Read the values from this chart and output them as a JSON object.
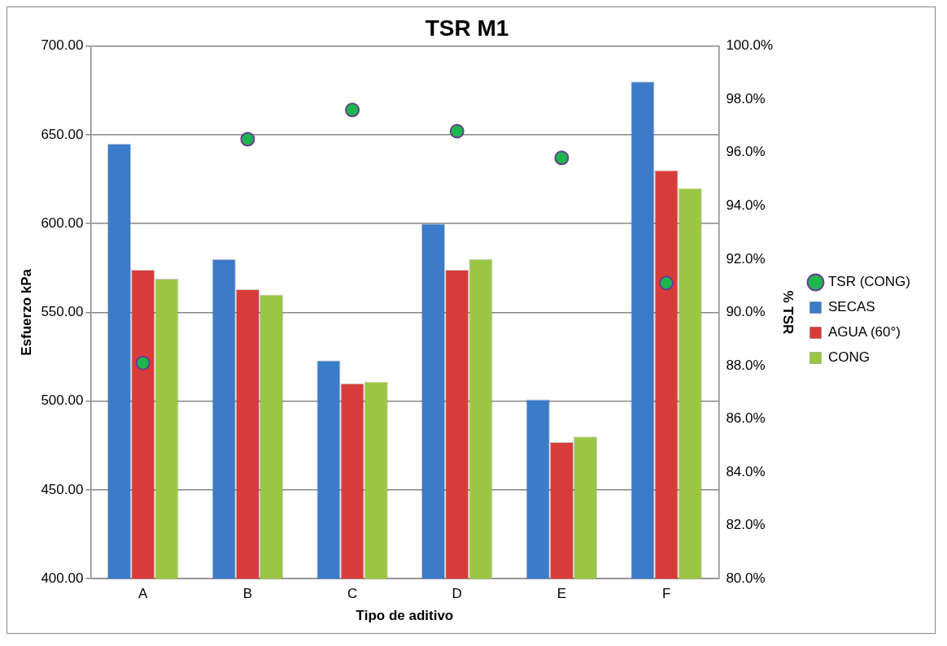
{
  "chart_data": {
    "type": "bar",
    "title": "TSR M1",
    "xlabel": "Tipo de aditivo",
    "ylabel": "Esfuerzo kPa",
    "y2label": "% TSR",
    "categories": [
      "A",
      "B",
      "C",
      "D",
      "E",
      "F"
    ],
    "series": [
      {
        "name": "SECAS",
        "color": "#3b7bc8",
        "values": [
          645,
          580,
          523,
          600,
          501,
          680
        ]
      },
      {
        "name": "AGUA (60°)",
        "color": "#d63d3a",
        "values": [
          574,
          563,
          510,
          574,
          477,
          630
        ]
      },
      {
        "name": "CONG",
        "color": "#9bc644",
        "values": [
          569,
          560,
          511,
          580,
          480,
          620
        ]
      },
      {
        "name": "TSR (CONG)",
        "type": "scatter",
        "axis": "y2",
        "color": "#1db64e",
        "marker": "circle",
        "values": [
          88.1,
          96.5,
          97.6,
          96.8,
          95.8,
          91.1
        ]
      }
    ],
    "ylim": [
      400,
      700
    ],
    "yticks": [
      {
        "value": 400,
        "label": "400.00"
      },
      {
        "value": 450,
        "label": "450.00"
      },
      {
        "value": 500,
        "label": "500.00"
      },
      {
        "value": 550,
        "label": "550.00"
      },
      {
        "value": 600,
        "label": "600.00"
      },
      {
        "value": 650,
        "label": "650.00"
      },
      {
        "value": 700,
        "label": "700.00"
      }
    ],
    "y2lim": [
      80,
      100
    ],
    "y2ticks": [
      {
        "value": 80,
        "label": "80.0%"
      },
      {
        "value": 82,
        "label": "82.0%"
      },
      {
        "value": 84,
        "label": "84.0%"
      },
      {
        "value": 86,
        "label": "86.0%"
      },
      {
        "value": 88,
        "label": "88.0%"
      },
      {
        "value": 90,
        "label": "90.0%"
      },
      {
        "value": 92,
        "label": "92.0%"
      },
      {
        "value": 94,
        "label": "94.0%"
      },
      {
        "value": 96,
        "label": "96.0%"
      },
      {
        "value": 98,
        "label": "98.0%"
      },
      {
        "value": 100,
        "label": "100.0%"
      }
    ],
    "grid": "y",
    "legend": "right"
  }
}
